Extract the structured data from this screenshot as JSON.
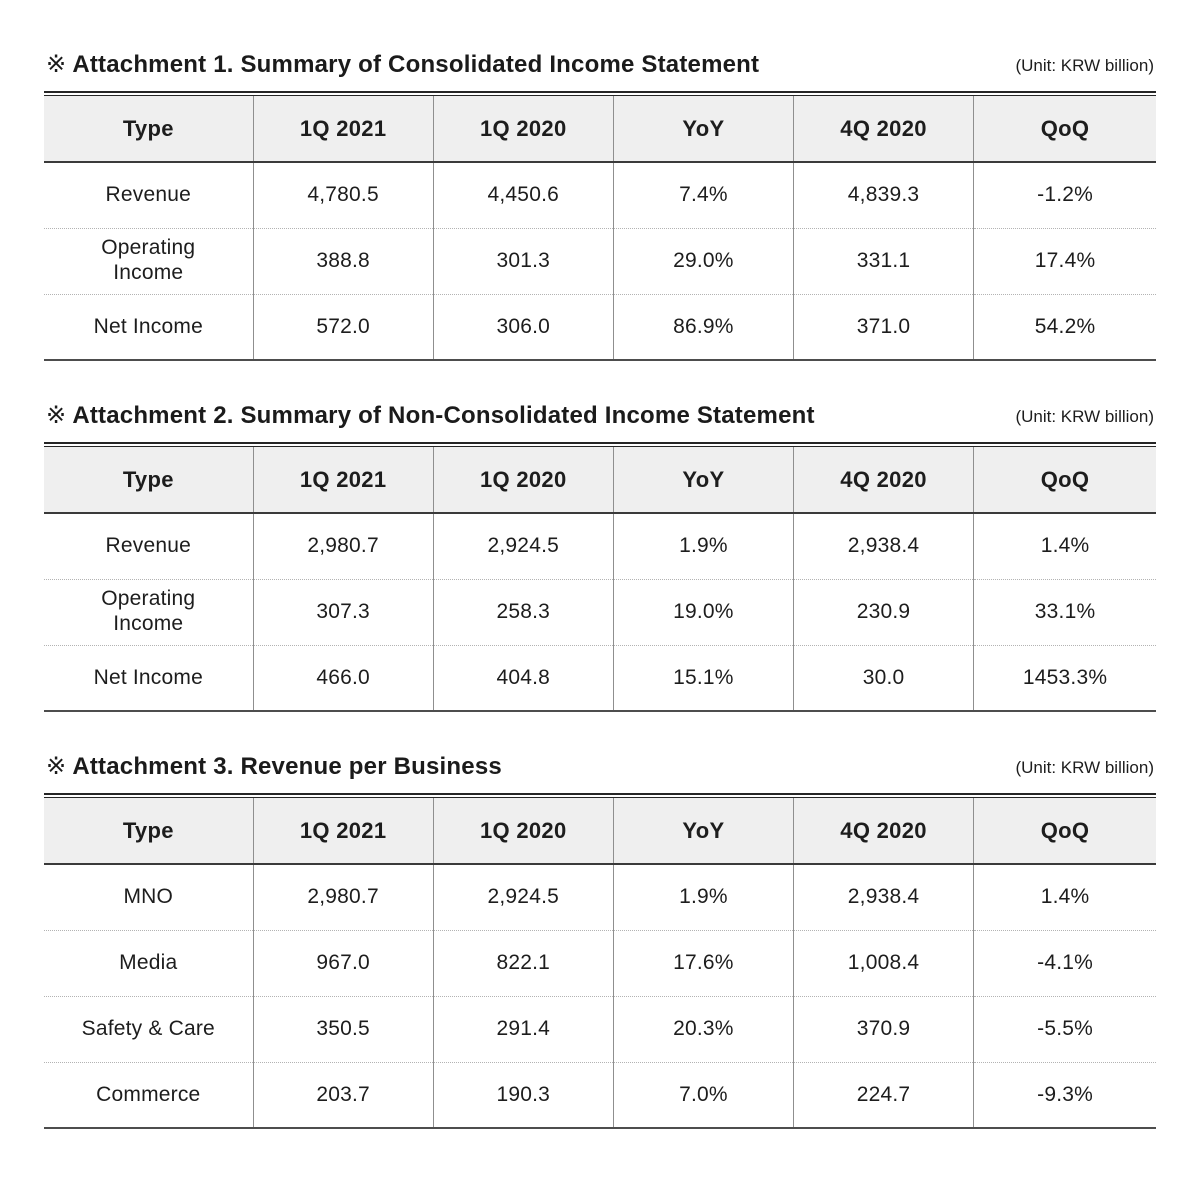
{
  "section_marker": "※",
  "tables": [
    {
      "title": "Attachment 1. Summary of Consolidated Income Statement",
      "unit": "(Unit: KRW billion)",
      "columns": [
        "Type",
        "1Q 2021",
        "1Q 2020",
        "YoY",
        "4Q 2020",
        "QoQ"
      ],
      "rows": [
        [
          "Revenue",
          "4,780.5",
          "4,450.6",
          "7.4%",
          "4,839.3",
          "-1.2%"
        ],
        [
          "Operating Income",
          "388.8",
          "301.3",
          "29.0%",
          "331.1",
          "17.4%"
        ],
        [
          "Net Income",
          "572.0",
          "306.0",
          "86.9%",
          "371.0",
          "54.2%"
        ]
      ]
    },
    {
      "title": "Attachment 2. Summary of Non-Consolidated Income Statement",
      "unit": "(Unit: KRW billion)",
      "columns": [
        "Type",
        "1Q 2021",
        "1Q 2020",
        "YoY",
        "4Q 2020",
        "QoQ"
      ],
      "rows": [
        [
          "Revenue",
          "2,980.7",
          "2,924.5",
          "1.9%",
          "2,938.4",
          "1.4%"
        ],
        [
          "Operating Income",
          "307.3",
          "258.3",
          "19.0%",
          "230.9",
          "33.1%"
        ],
        [
          "Net Income",
          "466.0",
          "404.8",
          "15.1%",
          "30.0",
          "1453.3%"
        ]
      ]
    },
    {
      "title": "Attachment 3. Revenue per Business",
      "unit": "(Unit: KRW billion)",
      "columns": [
        "Type",
        "1Q 2021",
        "1Q 2020",
        "YoY",
        "4Q 2020",
        "QoQ"
      ],
      "rows": [
        [
          "MNO",
          "2,980.7",
          "2,924.5",
          "1.9%",
          "2,938.4",
          "1.4%"
        ],
        [
          "Media",
          "967.0",
          "822.1",
          "17.6%",
          "1,008.4",
          "-4.1%"
        ],
        [
          "Safety & Care",
          "350.5",
          "291.4",
          "20.3%",
          "370.9",
          "-5.5%"
        ],
        [
          "Commerce",
          "203.7",
          "190.3",
          "7.0%",
          "224.7",
          "-9.3%"
        ]
      ]
    }
  ]
}
